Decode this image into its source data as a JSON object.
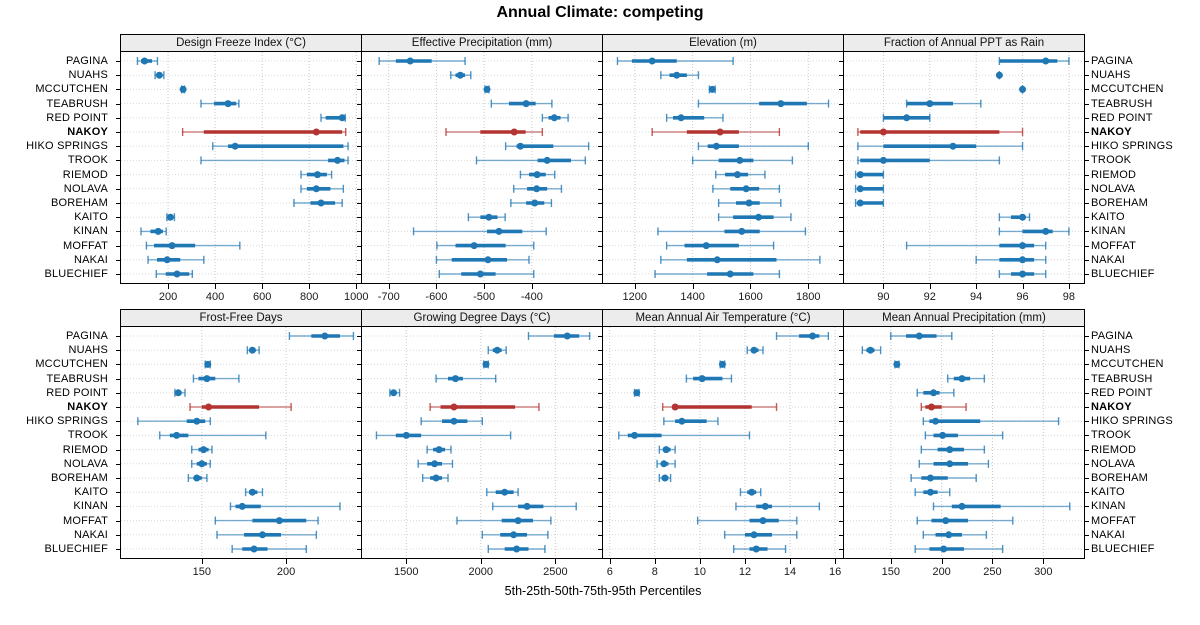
{
  "title": "Annual Climate: competing",
  "xlabel": "5th-25th-50th-75th-95th Percentiles",
  "colors": {
    "series": "#1f77b4",
    "highlight": "#b43431",
    "header_bg": "#ececec",
    "border": "#000000",
    "grid": "#c8c8c8",
    "row_guide": "#d8d8d8",
    "text": "#000000"
  },
  "sites": [
    "PAGINA",
    "NUAHS",
    "MCCUTCHEN",
    "TEABRUSH",
    "RED POINT",
    "NAKOY",
    "HIKO SPRINGS",
    "TROOK",
    "RIEMOD",
    "NOLAVA",
    "BOREHAM",
    "KAITO",
    "KINAN",
    "MOFFAT",
    "NAKAI",
    "BLUECHIEF"
  ],
  "highlight_site": "NAKOY",
  "chart_data": {
    "type": "scatter",
    "subtype": "percentile-interval-dotplot",
    "percentiles": [
      5,
      25,
      50,
      75,
      95
    ],
    "legend": "thin line = 5th-95th, thick line = 25th-75th, dot = 50th percentile",
    "panels": [
      {
        "title": "Design Freeze Index (°C)",
        "row": 0,
        "col": 0,
        "xlim": [
          0,
          1020
        ],
        "ticks": [
          200,
          400,
          600,
          800,
          1000
        ],
        "values": [
          [
            70,
            85,
            100,
            132,
            155
          ],
          [
            145,
            152,
            163,
            172,
            182
          ],
          [
            258,
            261,
            264,
            267,
            270
          ],
          [
            340,
            395,
            455,
            490,
            501
          ],
          [
            850,
            870,
            940,
            948,
            953
          ],
          [
            262,
            352,
            830,
            940,
            955
          ],
          [
            390,
            455,
            485,
            945,
            965
          ],
          [
            340,
            880,
            920,
            950,
            965
          ],
          [
            765,
            790,
            835,
            875,
            895
          ],
          [
            765,
            790,
            830,
            890,
            945
          ],
          [
            735,
            805,
            850,
            910,
            940
          ],
          [
            195,
            203,
            210,
            218,
            227
          ],
          [
            85,
            125,
            158,
            178,
            192
          ],
          [
            108,
            140,
            217,
            315,
            505
          ],
          [
            115,
            153,
            196,
            252,
            352
          ],
          [
            150,
            190,
            238,
            290,
            303
          ]
        ]
      },
      {
        "title": "Effective Precipitation (mm)",
        "row": 0,
        "col": 1,
        "xlim": [
          -756,
          -253
        ],
        "ticks": [
          -700,
          -600,
          -500,
          -400
        ],
        "values": [
          [
            -720,
            -685,
            -655,
            -610,
            -540
          ],
          [
            -570,
            -560,
            -550,
            -540,
            -528
          ],
          [
            -498,
            -496,
            -494,
            -492,
            -490
          ],
          [
            -485,
            -448,
            -412,
            -392,
            -358
          ],
          [
            -378,
            -365,
            -353,
            -340,
            -324
          ],
          [
            -580,
            -508,
            -437,
            -413,
            -378
          ],
          [
            -455,
            -432,
            -424,
            -355,
            -281
          ],
          [
            -516,
            -388,
            -368,
            -318,
            -288
          ],
          [
            -424,
            -406,
            -389,
            -371,
            -352
          ],
          [
            -438,
            -410,
            -390,
            -368,
            -338
          ],
          [
            -444,
            -412,
            -394,
            -374,
            -359
          ],
          [
            -533,
            -508,
            -490,
            -472,
            -456
          ],
          [
            -648,
            -494,
            -469,
            -420,
            -370
          ],
          [
            -599,
            -560,
            -521,
            -455,
            -396
          ],
          [
            -600,
            -568,
            -492,
            -452,
            -406
          ],
          [
            -594,
            -548,
            -508,
            -476,
            -396
          ]
        ]
      },
      {
        "title": "Elevation (m)",
        "row": 0,
        "col": 2,
        "xlim": [
          1090,
          1920
        ],
        "ticks": [
          1200,
          1400,
          1600,
          1800
        ],
        "values": [
          [
            1140,
            1190,
            1260,
            1345,
            1540
          ],
          [
            1290,
            1320,
            1345,
            1380,
            1420
          ],
          [
            1458,
            1463,
            1468,
            1473,
            1478
          ],
          [
            1420,
            1630,
            1705,
            1795,
            1870
          ],
          [
            1310,
            1332,
            1360,
            1440,
            1505
          ],
          [
            1260,
            1380,
            1495,
            1560,
            1700
          ],
          [
            1420,
            1452,
            1482,
            1560,
            1800
          ],
          [
            1400,
            1490,
            1563,
            1610,
            1745
          ],
          [
            1480,
            1512,
            1555,
            1592,
            1650
          ],
          [
            1470,
            1530,
            1585,
            1630,
            1700
          ],
          [
            1490,
            1550,
            1595,
            1632,
            1705
          ],
          [
            1490,
            1540,
            1628,
            1680,
            1740
          ],
          [
            1280,
            1510,
            1570,
            1632,
            1790
          ],
          [
            1310,
            1372,
            1447,
            1560,
            1680
          ],
          [
            1290,
            1380,
            1485,
            1690,
            1840
          ],
          [
            1270,
            1450,
            1530,
            1610,
            1700
          ]
        ]
      },
      {
        "title": "Fraction of Annual PPT as Rain",
        "row": 0,
        "col": 3,
        "xlim": [
          88.3,
          98.65
        ],
        "ticks": [
          90,
          92,
          94,
          96,
          98
        ],
        "values": [
          [
            95,
            95,
            97,
            97.5,
            98
          ],
          [
            95,
            95,
            95,
            95,
            95
          ],
          [
            96,
            96,
            96,
            96,
            96
          ],
          [
            91,
            91,
            92,
            93,
            94.2
          ],
          [
            90,
            90,
            91,
            92,
            92
          ],
          [
            88.9,
            89,
            90,
            95,
            96
          ],
          [
            88.9,
            90,
            93,
            94,
            96
          ],
          [
            88.9,
            89,
            90,
            92,
            95
          ],
          [
            88.8,
            88.9,
            89,
            90,
            90
          ],
          [
            88.8,
            88.9,
            89,
            90,
            90
          ],
          [
            88.8,
            88.9,
            89,
            90,
            90
          ],
          [
            95,
            95.5,
            96,
            96,
            96.3
          ],
          [
            95,
            96,
            97,
            97.3,
            98
          ],
          [
            91,
            95,
            96,
            96.5,
            97
          ],
          [
            94,
            95,
            96,
            96.5,
            97
          ],
          [
            95,
            95.5,
            96,
            96.5,
            97
          ]
        ]
      },
      {
        "title": "Frost-Free Days",
        "row": 1,
        "col": 0,
        "xlim": [
          102,
          244.5
        ],
        "ticks": [
          150,
          200
        ],
        "values": [
          [
            202,
            215,
            223,
            232,
            240
          ],
          [
            177,
            179,
            180,
            182,
            184
          ],
          [
            152,
            153,
            153.5,
            154,
            155
          ],
          [
            145,
            148,
            153,
            158,
            172
          ],
          [
            134,
            135,
            136,
            138,
            140
          ],
          [
            143,
            150,
            154,
            184,
            203
          ],
          [
            112,
            141,
            147,
            152,
            155
          ],
          [
            125,
            131,
            135,
            142,
            188
          ],
          [
            144,
            148,
            151,
            154,
            156
          ],
          [
            144,
            147,
            150,
            153,
            155
          ],
          [
            142,
            145,
            147,
            150,
            153
          ],
          [
            176,
            178,
            180,
            183,
            186
          ],
          [
            167,
            170,
            174,
            185,
            232
          ],
          [
            158,
            180,
            196,
            212,
            219
          ],
          [
            159,
            175,
            186,
            197,
            218
          ],
          [
            168,
            174,
            181,
            189,
            212
          ]
        ]
      },
      {
        "title": "Growing Degree Days (°C)",
        "row": 1,
        "col": 1,
        "xlim": [
          1203,
          2813
        ],
        "ticks": [
          1500,
          2000,
          2500
        ],
        "values": [
          [
            2320,
            2490,
            2580,
            2660,
            2730
          ],
          [
            2050,
            2080,
            2110,
            2140,
            2170
          ],
          [
            2020,
            2028,
            2035,
            2042,
            2050
          ],
          [
            1700,
            1780,
            1830,
            1880,
            2100
          ],
          [
            1390,
            1400,
            1415,
            1430,
            1455
          ],
          [
            1660,
            1730,
            1820,
            2230,
            2390
          ],
          [
            1600,
            1740,
            1820,
            1910,
            2010
          ],
          [
            1300,
            1430,
            1500,
            1600,
            2200
          ],
          [
            1640,
            1680,
            1720,
            1760,
            1800
          ],
          [
            1580,
            1640,
            1690,
            1740,
            1810
          ],
          [
            1610,
            1660,
            1700,
            1740,
            1780
          ],
          [
            2040,
            2100,
            2160,
            2220,
            2250
          ],
          [
            2080,
            2250,
            2310,
            2420,
            2640
          ],
          [
            1840,
            2140,
            2250,
            2350,
            2470
          ],
          [
            2010,
            2130,
            2220,
            2310,
            2450
          ],
          [
            2050,
            2160,
            2240,
            2320,
            2430
          ]
        ]
      },
      {
        "title": "Mean Annual Air Temperature (°C)",
        "row": 1,
        "col": 2,
        "xlim": [
          5.7,
          16.35
        ],
        "ticks": [
          6,
          8,
          10,
          12,
          14,
          16
        ],
        "values": [
          [
            13.4,
            14.4,
            15.0,
            15.3,
            15.7
          ],
          [
            12.1,
            12.3,
            12.4,
            12.6,
            12.8
          ],
          [
            10.9,
            11.0,
            11.0,
            11.1,
            11.1
          ],
          [
            9.4,
            9.7,
            10.1,
            11.0,
            11.4
          ],
          [
            7.1,
            7.15,
            7.2,
            7.25,
            7.3
          ],
          [
            8.35,
            8.8,
            8.9,
            12.3,
            13.4
          ],
          [
            8.4,
            8.9,
            9.2,
            10.3,
            10.8
          ],
          [
            6.4,
            6.8,
            7.1,
            8.3,
            12.2
          ],
          [
            8.2,
            8.4,
            8.5,
            8.7,
            8.9
          ],
          [
            8.1,
            8.3,
            8.4,
            8.6,
            8.9
          ],
          [
            8.2,
            8.3,
            8.45,
            8.6,
            8.7
          ],
          [
            11.8,
            12.1,
            12.3,
            12.5,
            12.7
          ],
          [
            11.6,
            12.5,
            12.9,
            13.2,
            15.3
          ],
          [
            9.9,
            12.2,
            12.8,
            13.5,
            14.3
          ],
          [
            11.1,
            12.0,
            12.4,
            13.2,
            14.3
          ],
          [
            11.5,
            12.2,
            12.5,
            13.0,
            13.8
          ]
        ]
      },
      {
        "title": "Mean Annual Precipitation (mm)",
        "row": 1,
        "col": 3,
        "xlim": [
          104,
          340
        ],
        "ticks": [
          150,
          200,
          250,
          300
        ],
        "values": [
          [
            150,
            165,
            178,
            195,
            210
          ],
          [
            122,
            126,
            130,
            134,
            140
          ],
          [
            154,
            155,
            156,
            157,
            158
          ],
          [
            206,
            212,
            220,
            228,
            242
          ],
          [
            176,
            182,
            192,
            198,
            212
          ],
          [
            180,
            184,
            190,
            200,
            224
          ],
          [
            182,
            188,
            194,
            238,
            315
          ],
          [
            184,
            192,
            201,
            216,
            260
          ],
          [
            180,
            196,
            208,
            222,
            242
          ],
          [
            178,
            192,
            208,
            226,
            246
          ],
          [
            170,
            180,
            189,
            206,
            234
          ],
          [
            174,
            182,
            189,
            196,
            208
          ],
          [
            192,
            210,
            220,
            258,
            326
          ],
          [
            176,
            190,
            204,
            226,
            270
          ],
          [
            182,
            194,
            207,
            220,
            244
          ],
          [
            174,
            188,
            202,
            222,
            260
          ]
        ]
      }
    ]
  }
}
